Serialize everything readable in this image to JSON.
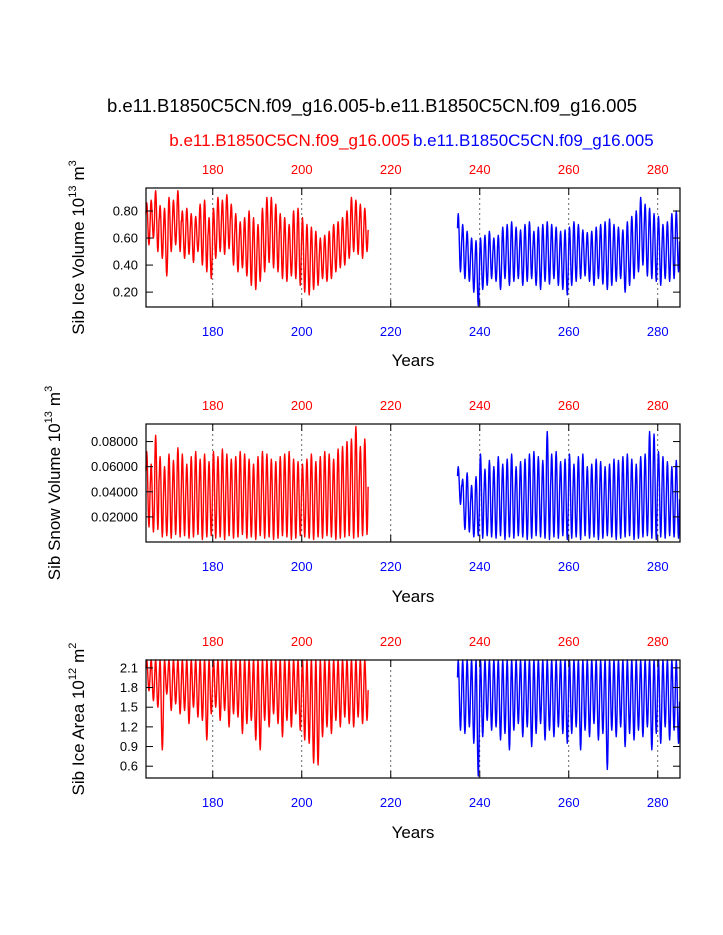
{
  "main_title": "b.e11.B1850C5CN.f09_g16.005-b.e11.B1850C5CN.f09_g16.005",
  "legend": {
    "left_case": "b.e11.B1850C5CN.f09_g16.005",
    "right_case": "b.e11.B1850C5CN.f09_g16.005",
    "left_color": "#ff0000",
    "right_color": "#0000ff"
  },
  "chart_data": [
    {
      "type": "line",
      "id": "ice-volume",
      "ylabel_main": "Sib Ice Volume 10",
      "ylabel_exp": "13",
      "ylabel_unit": "m",
      "ylabel_unit_exp": "3",
      "xlabel": "Years",
      "xlim": [
        165,
        285
      ],
      "ylim": [
        0.09,
        0.97
      ],
      "yticks": [
        0.2,
        0.4,
        0.6,
        0.8
      ],
      "ytick_labels": [
        "0.20",
        "0.40",
        "0.60",
        "0.80"
      ],
      "xticks": [
        180,
        200,
        220,
        240,
        260,
        280
      ],
      "top_xtick_labels": [
        "180",
        "200",
        "220",
        "240",
        "260",
        "280"
      ],
      "bottom_xtick_labels": [
        "180",
        "200",
        "220",
        "240",
        "260",
        "280"
      ],
      "series": [
        {
          "name": "b.e11.B1850C5CN.f09_g16.005",
          "color": "#ff0000",
          "x_start": 165,
          "x_end": 215,
          "annual_max": [
            0.86,
            0.88,
            0.95,
            0.84,
            0.82,
            0.9,
            0.88,
            0.95,
            0.8,
            0.82,
            0.78,
            0.76,
            0.85,
            0.88,
            0.75,
            0.82,
            0.9,
            0.88,
            0.92,
            0.85,
            0.78,
            0.72,
            0.75,
            0.8,
            0.75,
            0.7,
            0.82,
            0.9,
            0.9,
            0.85,
            0.78,
            0.75,
            0.7,
            0.8,
            0.82,
            0.75,
            0.7,
            0.68,
            0.65,
            0.6,
            0.62,
            0.65,
            0.7,
            0.72,
            0.75,
            0.8,
            0.9,
            0.88,
            0.85,
            0.82
          ],
          "annual_min": [
            0.55,
            0.6,
            0.5,
            0.45,
            0.32,
            0.5,
            0.55,
            0.5,
            0.45,
            0.48,
            0.42,
            0.5,
            0.4,
            0.35,
            0.3,
            0.45,
            0.5,
            0.48,
            0.52,
            0.4,
            0.35,
            0.38,
            0.32,
            0.25,
            0.22,
            0.28,
            0.35,
            0.42,
            0.38,
            0.35,
            0.3,
            0.28,
            0.32,
            0.3,
            0.25,
            0.2,
            0.18,
            0.22,
            0.25,
            0.3,
            0.28,
            0.3,
            0.35,
            0.38,
            0.4,
            0.45,
            0.5,
            0.48,
            0.45,
            0.5
          ]
        },
        {
          "name": "b.e11.B1850C5CN.f09_g16.005",
          "color": "#0000ff",
          "x_start": 235,
          "x_end": 285,
          "annual_max": [
            0.78,
            0.7,
            0.65,
            0.6,
            0.58,
            0.6,
            0.62,
            0.65,
            0.6,
            0.62,
            0.68,
            0.7,
            0.72,
            0.68,
            0.66,
            0.7,
            0.72,
            0.65,
            0.68,
            0.7,
            0.72,
            0.7,
            0.68,
            0.65,
            0.66,
            0.68,
            0.72,
            0.7,
            0.66,
            0.64,
            0.65,
            0.68,
            0.7,
            0.72,
            0.74,
            0.7,
            0.68,
            0.66,
            0.72,
            0.76,
            0.8,
            0.9,
            0.85,
            0.82,
            0.78,
            0.76,
            0.7,
            0.72,
            0.78,
            0.8
          ],
          "annual_min": [
            0.35,
            0.3,
            0.28,
            0.2,
            0.1,
            0.22,
            0.25,
            0.3,
            0.28,
            0.22,
            0.3,
            0.25,
            0.28,
            0.3,
            0.25,
            0.28,
            0.3,
            0.25,
            0.22,
            0.28,
            0.26,
            0.3,
            0.25,
            0.22,
            0.18,
            0.25,
            0.28,
            0.3,
            0.32,
            0.28,
            0.25,
            0.3,
            0.26,
            0.22,
            0.25,
            0.28,
            0.3,
            0.2,
            0.25,
            0.3,
            0.35,
            0.4,
            0.32,
            0.3,
            0.28,
            0.25,
            0.3,
            0.28,
            0.3,
            0.35
          ]
        }
      ]
    },
    {
      "type": "line",
      "id": "snow-volume",
      "ylabel_main": "Sib Snow Volume 10",
      "ylabel_exp": "13",
      "ylabel_unit": "m",
      "ylabel_unit_exp": "3",
      "xlabel": "Years",
      "xlim": [
        165,
        285
      ],
      "ylim": [
        0,
        0.094
      ],
      "yticks": [
        0.02,
        0.04,
        0.06,
        0.08
      ],
      "ytick_labels": [
        "0.02000",
        "0.04000",
        "0.06000",
        "0.08000"
      ],
      "xticks": [
        180,
        200,
        220,
        240,
        260,
        280
      ],
      "top_xtick_labels": [
        "180",
        "200",
        "220",
        "240",
        "260",
        "280"
      ],
      "bottom_xtick_labels": [
        "180",
        "200",
        "220",
        "240",
        "260",
        "280"
      ],
      "series": [
        {
          "name": "b.e11.B1850C5CN.f09_g16.005",
          "color": "#ff0000",
          "x_start": 165,
          "x_end": 215,
          "annual_max": [
            0.072,
            0.062,
            0.085,
            0.068,
            0.06,
            0.07,
            0.065,
            0.075,
            0.07,
            0.062,
            0.068,
            0.072,
            0.066,
            0.07,
            0.064,
            0.072,
            0.068,
            0.074,
            0.07,
            0.066,
            0.068,
            0.072,
            0.07,
            0.066,
            0.062,
            0.068,
            0.072,
            0.07,
            0.066,
            0.064,
            0.068,
            0.07,
            0.072,
            0.066,
            0.064,
            0.062,
            0.066,
            0.07,
            0.064,
            0.068,
            0.072,
            0.07,
            0.066,
            0.074,
            0.076,
            0.08,
            0.082,
            0.092,
            0.076,
            0.082
          ],
          "annual_min": [
            0.012,
            0.008,
            0.01,
            0.004,
            0.005,
            0.003,
            0.006,
            0.004,
            0.005,
            0.003,
            0.004,
            0.006,
            0.002,
            0.004,
            0.005,
            0.003,
            0.004,
            0.002,
            0.005,
            0.003,
            0.004,
            0.006,
            0.003,
            0.004,
            0.002,
            0.005,
            0.003,
            0.004,
            0.002,
            0.003,
            0.005,
            0.004,
            0.002,
            0.003,
            0.005,
            0.004,
            0.003,
            0.002,
            0.004,
            0.003,
            0.005,
            0.004,
            0.002,
            0.003,
            0.004,
            0.005,
            0.003,
            0.004,
            0.005,
            0.006
          ]
        },
        {
          "name": "b.e11.B1850C5CN.f09_g16.005",
          "color": "#0000ff",
          "x_start": 235,
          "x_end": 285,
          "annual_max": [
            0.06,
            0.05,
            0.055,
            0.045,
            0.052,
            0.07,
            0.058,
            0.065,
            0.06,
            0.068,
            0.062,
            0.066,
            0.07,
            0.06,
            0.064,
            0.066,
            0.07,
            0.072,
            0.068,
            0.065,
            0.088,
            0.07,
            0.072,
            0.064,
            0.066,
            0.07,
            0.062,
            0.068,
            0.07,
            0.06,
            0.062,
            0.066,
            0.064,
            0.06,
            0.062,
            0.066,
            0.065,
            0.068,
            0.07,
            0.066,
            0.062,
            0.068,
            0.07,
            0.088,
            0.086,
            0.072,
            0.068,
            0.064,
            0.06,
            0.065
          ],
          "annual_min": [
            0.03,
            0.01,
            0.008,
            0.004,
            0.005,
            0.003,
            0.005,
            0.004,
            0.003,
            0.005,
            0.002,
            0.004,
            0.003,
            0.005,
            0.004,
            0.002,
            0.003,
            0.005,
            0.004,
            0.003,
            0.002,
            0.004,
            0.003,
            0.005,
            0.002,
            0.003,
            0.004,
            0.002,
            0.005,
            0.003,
            0.004,
            0.002,
            0.003,
            0.005,
            0.004,
            0.002,
            0.003,
            0.004,
            0.005,
            0.002,
            0.003,
            0.004,
            0.005,
            0.003,
            0.002,
            0.004,
            0.003,
            0.005,
            0.004,
            0.003
          ]
        }
      ]
    },
    {
      "type": "line",
      "id": "ice-area",
      "ylabel_main": "Sib Ice Area 10",
      "ylabel_exp": "12",
      "ylabel_unit": "m",
      "ylabel_unit_exp": "2",
      "xlabel": "Years",
      "xlim": [
        165,
        285
      ],
      "ylim": [
        0.42,
        2.22
      ],
      "yticks": [
        0.6,
        0.9,
        1.2,
        1.5,
        1.8,
        2.1
      ],
      "ytick_labels": [
        "0.6",
        "0.9",
        "1.2",
        "1.5",
        "1.8",
        "2.1"
      ],
      "xticks": [
        180,
        200,
        220,
        240,
        260,
        280
      ],
      "top_xtick_labels": [
        "180",
        "200",
        "220",
        "240",
        "260",
        "280"
      ],
      "bottom_xtick_labels": [
        "180",
        "200",
        "220",
        "240",
        "260",
        "280"
      ],
      "series": [
        {
          "name": "b.e11.B1850C5CN.f09_g16.005",
          "color": "#ff0000",
          "x_start": 165,
          "x_end": 215,
          "annual_max": [
            2.22,
            2.22,
            2.22,
            2.22,
            2.22,
            2.22,
            2.22,
            2.22,
            2.22,
            2.22,
            2.22,
            2.22,
            2.22,
            2.22,
            2.22,
            2.22,
            2.22,
            2.22,
            2.22,
            2.22,
            2.22,
            2.22,
            2.22,
            2.22,
            2.22,
            2.22,
            2.22,
            2.22,
            2.22,
            2.22,
            2.22,
            2.22,
            2.22,
            2.22,
            2.22,
            2.22,
            2.22,
            2.22,
            2.22,
            2.22,
            2.22,
            2.22,
            2.22,
            2.22,
            2.22,
            2.22,
            2.22,
            2.22,
            2.22,
            2.22
          ],
          "annual_min": [
            1.75,
            1.6,
            1.5,
            0.85,
            1.7,
            1.45,
            1.55,
            1.4,
            1.45,
            1.25,
            1.5,
            1.35,
            1.3,
            1.0,
            1.4,
            1.5,
            1.3,
            1.45,
            1.2,
            1.4,
            1.35,
            1.1,
            1.25,
            1.3,
            1.0,
            0.85,
            1.3,
            1.2,
            1.4,
            1.25,
            1.05,
            1.3,
            1.2,
            1.4,
            1.15,
            1.0,
            0.95,
            0.65,
            0.62,
            1.05,
            1.2,
            1.1,
            1.3,
            1.2,
            1.35,
            1.25,
            1.2,
            1.35,
            1.25,
            1.3
          ]
        },
        {
          "name": "b.e11.B1850C5CN.f09_g16.005",
          "color": "#0000ff",
          "x_start": 235,
          "x_end": 285,
          "annual_max": [
            2.22,
            2.22,
            2.22,
            2.22,
            2.22,
            2.22,
            2.22,
            2.22,
            2.22,
            2.22,
            2.22,
            2.22,
            2.22,
            2.22,
            2.22,
            2.22,
            2.22,
            2.22,
            2.22,
            2.22,
            2.22,
            2.22,
            2.22,
            2.22,
            2.22,
            2.22,
            2.22,
            2.22,
            2.22,
            2.22,
            2.22,
            2.22,
            2.22,
            2.22,
            2.22,
            2.22,
            2.22,
            2.22,
            2.22,
            2.22,
            2.22,
            2.22,
            2.22,
            2.22,
            2.22,
            2.22,
            2.22,
            2.22,
            2.22,
            2.22
          ],
          "annual_min": [
            1.15,
            1.1,
            1.2,
            0.95,
            0.45,
            1.05,
            1.3,
            1.15,
            1.2,
            1.0,
            1.1,
            0.85,
            1.15,
            1.25,
            1.05,
            1.2,
            0.9,
            1.1,
            1.25,
            1.0,
            1.15,
            1.05,
            1.2,
            1.1,
            0.95,
            1.1,
            1.2,
            0.85,
            1.15,
            1.05,
            1.25,
            1.0,
            1.1,
            0.55,
            1.15,
            1.05,
            1.2,
            0.9,
            1.1,
            1.0,
            1.15,
            1.05,
            1.2,
            0.85,
            1.1,
            0.95,
            1.2,
            1.0,
            1.15,
            0.95
          ]
        }
      ]
    }
  ]
}
